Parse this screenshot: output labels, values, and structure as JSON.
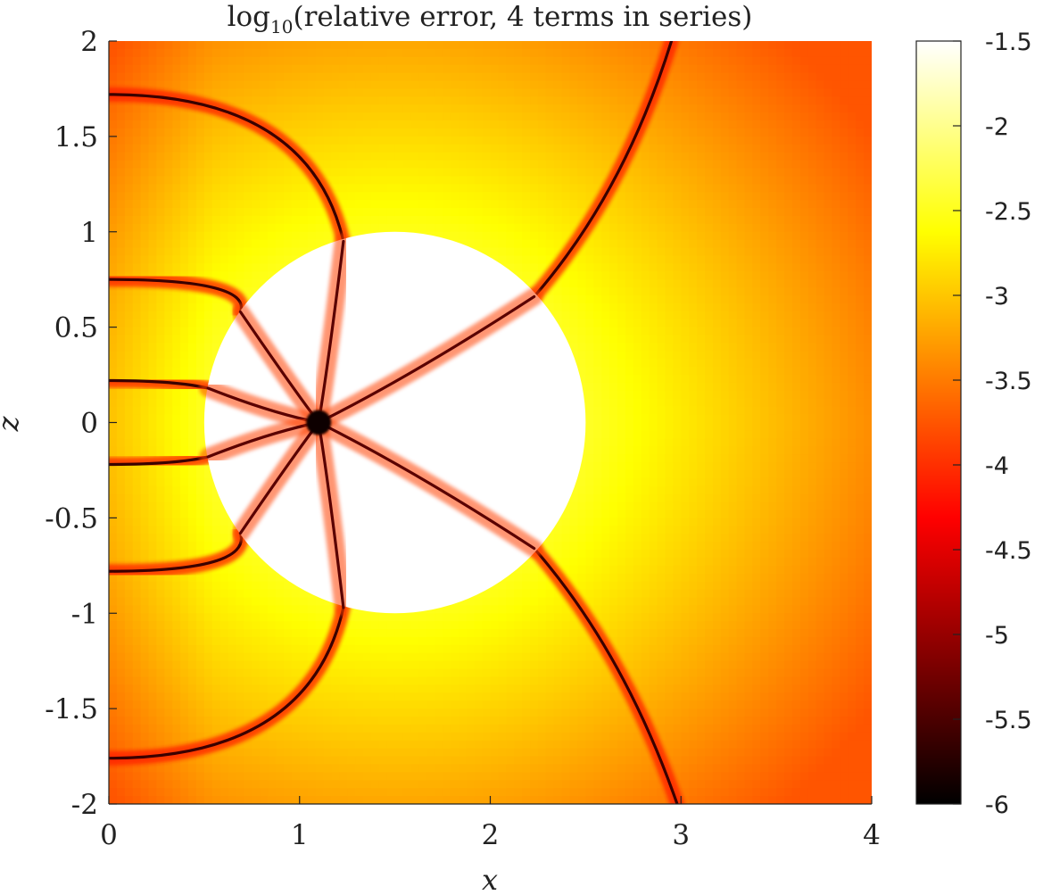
{
  "chart_data": {
    "type": "heatmap",
    "title_main": "log",
    "title_sub": "10",
    "title_rest": "(relative error, 4 terms in series)",
    "xlabel": "x",
    "ylabel": "z",
    "xlim": [
      0,
      4
    ],
    "ylim": [
      -2,
      2
    ],
    "x_ticks": [
      {
        "value": 0,
        "label": "0"
      },
      {
        "value": 1,
        "label": "1"
      },
      {
        "value": 2,
        "label": "2"
      },
      {
        "value": 3,
        "label": "3"
      },
      {
        "value": 4,
        "label": "4"
      }
    ],
    "y_ticks": [
      {
        "value": 2,
        "label": "2"
      },
      {
        "value": 1.5,
        "label": "1.5"
      },
      {
        "value": 1,
        "label": "1"
      },
      {
        "value": 0.5,
        "label": "0.5"
      },
      {
        "value": 0,
        "label": "0"
      },
      {
        "value": -0.5,
        "label": "-0.5"
      },
      {
        "value": -1,
        "label": "-1"
      },
      {
        "value": -1.5,
        "label": "-1.5"
      },
      {
        "value": -2,
        "label": "-2"
      }
    ],
    "colorbar": {
      "colormap": "hot",
      "clim": [
        -6,
        -1.5
      ],
      "ticks": [
        {
          "value": -1.5,
          "label": "-1.5"
        },
        {
          "value": -2,
          "label": "-2"
        },
        {
          "value": -2.5,
          "label": "-2.5"
        },
        {
          "value": -3,
          "label": "-3"
        },
        {
          "value": -3.5,
          "label": "-3.5"
        },
        {
          "value": -4,
          "label": "-4"
        },
        {
          "value": -4.5,
          "label": "-4.5"
        },
        {
          "value": -5,
          "label": "-5"
        },
        {
          "value": -5.5,
          "label": "-5.5"
        },
        {
          "value": -6,
          "label": "-6"
        }
      ]
    },
    "disk": {
      "center_x": 1.5,
      "center_z": 0,
      "radius": 1.0,
      "value": -1.5
    },
    "singular_point": {
      "x": 1.1,
      "z": 0
    },
    "grid": false
  }
}
